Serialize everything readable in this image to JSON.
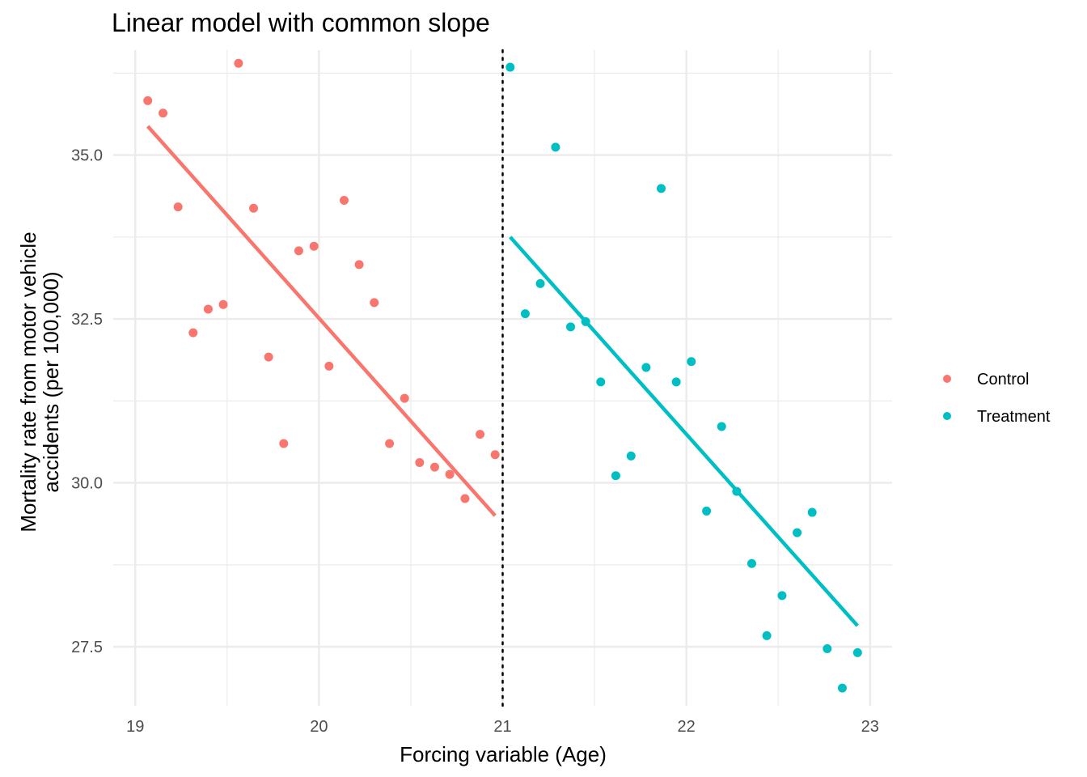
{
  "chart_data": {
    "type": "scatter",
    "title": "Linear model with common slope",
    "xlabel": "Forcing variable (Age)",
    "ylabel_lines": [
      "Mortality rate from motor vehicle",
      "accidents (per 100,000)"
    ],
    "xlim": [
      18.88,
      23.12
    ],
    "ylim": [
      26.6,
      36.6
    ],
    "x_ticks": [
      19,
      20,
      21,
      22,
      23
    ],
    "x_tick_labels": [
      "19",
      "20",
      "21",
      "22",
      "23"
    ],
    "y_ticks": [
      27.5,
      30.0,
      32.5,
      35.0
    ],
    "y_tick_labels": [
      "27.5",
      "30.0",
      "32.5",
      "35.0"
    ],
    "grid": true,
    "cutoff": 21,
    "legend_position": "right",
    "series": [
      {
        "name": "Control",
        "color": "#F8766D",
        "points": [
          [
            19.068,
            35.83
          ],
          [
            19.151,
            35.64
          ],
          [
            19.233,
            34.21
          ],
          [
            19.315,
            32.29
          ],
          [
            19.397,
            32.65
          ],
          [
            19.479,
            32.72
          ],
          [
            19.562,
            36.4
          ],
          [
            19.644,
            34.19
          ],
          [
            19.726,
            31.92
          ],
          [
            19.808,
            30.6
          ],
          [
            19.89,
            33.54
          ],
          [
            19.973,
            33.61
          ],
          [
            20.055,
            31.78
          ],
          [
            20.137,
            34.31
          ],
          [
            20.219,
            33.33
          ],
          [
            20.301,
            32.75
          ],
          [
            20.384,
            30.6
          ],
          [
            20.466,
            31.29
          ],
          [
            20.548,
            30.31
          ],
          [
            20.63,
            30.24
          ],
          [
            20.712,
            30.13
          ],
          [
            20.795,
            29.76
          ],
          [
            20.877,
            30.74
          ],
          [
            20.959,
            30.43
          ]
        ],
        "fit": [
          [
            19.068,
            35.44
          ],
          [
            20.959,
            29.5
          ]
        ]
      },
      {
        "name": "Treatment",
        "color": "#00BFC4",
        "points": [
          [
            21.041,
            36.34
          ],
          [
            21.123,
            32.58
          ],
          [
            21.205,
            33.04
          ],
          [
            21.288,
            35.12
          ],
          [
            21.37,
            32.38
          ],
          [
            21.452,
            32.46
          ],
          [
            21.534,
            31.54
          ],
          [
            21.616,
            30.11
          ],
          [
            21.699,
            30.41
          ],
          [
            21.781,
            31.76
          ],
          [
            21.863,
            34.49
          ],
          [
            21.945,
            31.54
          ],
          [
            22.027,
            31.85
          ],
          [
            22.11,
            29.57
          ],
          [
            22.192,
            30.86
          ],
          [
            22.274,
            29.87
          ],
          [
            22.356,
            28.77
          ],
          [
            22.438,
            27.67
          ],
          [
            22.521,
            28.28
          ],
          [
            22.603,
            29.24
          ],
          [
            22.685,
            29.55
          ],
          [
            22.767,
            27.47
          ],
          [
            22.849,
            26.87
          ],
          [
            22.932,
            27.41
          ]
        ],
        "fit": [
          [
            21.041,
            33.75
          ],
          [
            22.932,
            27.82
          ]
        ]
      }
    ]
  }
}
